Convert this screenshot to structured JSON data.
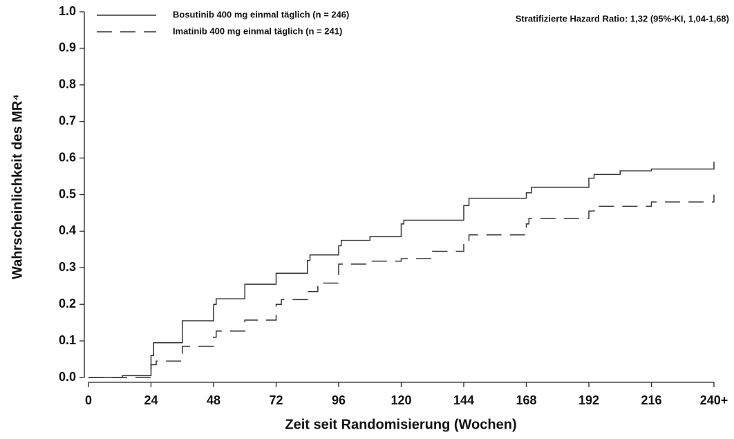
{
  "chart_data": {
    "type": "line",
    "x_label": "Zeit seit Randomisierung (Wochen)",
    "y_label": "Wahrscheinlichkeit des MR⁴",
    "annotation": "Stratifizierte Hazard Ratio: 1,32 (95%-KI, 1,04-1,68)",
    "xlim": [
      0,
      240
    ],
    "ylim": [
      0,
      1
    ],
    "xticks": [
      0,
      24,
      48,
      72,
      96,
      120,
      144,
      168,
      192,
      216,
      {
        "value": 240,
        "label": "240+"
      }
    ],
    "yticks": [
      {
        "value": 0,
        "label": "0.0"
      },
      0.1,
      0.2,
      0.3,
      0.4,
      0.5,
      0.6,
      0.7,
      0.8,
      0.9,
      {
        "value": 1,
        "label": "1.0"
      }
    ],
    "legend": "top-left",
    "series": [
      {
        "name": "Bosutinib 400 mg einmal täglich (n = 246)",
        "color": "#333333",
        "dash": "solid",
        "x": [
          0,
          13,
          13,
          24,
          24,
          25,
          25,
          36,
          36,
          48,
          48,
          49,
          49,
          60,
          60,
          72,
          72,
          84,
          84,
          85,
          85,
          96,
          96,
          97,
          97,
          108,
          108,
          120,
          120,
          121,
          121,
          144,
          144,
          146,
          146,
          168,
          168,
          170,
          170,
          192,
          192,
          194,
          194,
          204,
          204,
          216,
          216,
          240,
          240
        ],
        "values": [
          0,
          0,
          0.005,
          0.005,
          0.06,
          0.06,
          0.095,
          0.095,
          0.155,
          0.155,
          0.2,
          0.2,
          0.215,
          0.215,
          0.255,
          0.255,
          0.285,
          0.285,
          0.32,
          0.32,
          0.335,
          0.335,
          0.36,
          0.36,
          0.375,
          0.375,
          0.385,
          0.385,
          0.42,
          0.42,
          0.43,
          0.43,
          0.47,
          0.47,
          0.49,
          0.49,
          0.505,
          0.505,
          0.52,
          0.52,
          0.545,
          0.545,
          0.555,
          0.555,
          0.565,
          0.565,
          0.57,
          0.57,
          0.59
        ]
      },
      {
        "name": "Imatinib 400 mg einmal täglich (n = 241)",
        "color": "#333333",
        "dash": "dashed",
        "x": [
          0,
          24,
          24,
          26,
          26,
          36,
          36,
          48,
          48,
          49,
          49,
          60,
          60,
          72,
          72,
          74,
          74,
          84,
          84,
          88,
          88,
          96,
          96,
          108,
          108,
          120,
          120,
          132,
          132,
          144,
          144,
          146,
          146,
          168,
          168,
          169,
          169,
          192,
          192,
          194,
          194,
          216,
          216,
          240,
          240
        ],
        "values": [
          0,
          0,
          0.035,
          0.035,
          0.045,
          0.045,
          0.085,
          0.085,
          0.11,
          0.11,
          0.127,
          0.127,
          0.157,
          0.157,
          0.2,
          0.2,
          0.213,
          0.213,
          0.235,
          0.235,
          0.258,
          0.258,
          0.31,
          0.31,
          0.318,
          0.318,
          0.325,
          0.325,
          0.345,
          0.345,
          0.37,
          0.37,
          0.39,
          0.39,
          0.42,
          0.42,
          0.435,
          0.435,
          0.455,
          0.455,
          0.468,
          0.468,
          0.48,
          0.48,
          0.5
        ]
      }
    ]
  }
}
